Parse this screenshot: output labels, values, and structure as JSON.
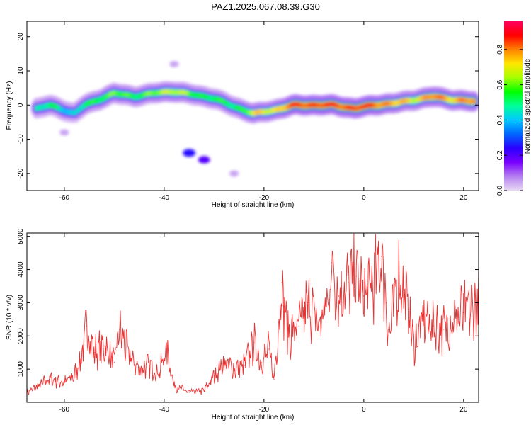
{
  "title": "PAZ1.2025.067.08.39.G30",
  "chart_data": [
    {
      "type": "heatmap",
      "xlabel": "Height of straight line (km)",
      "ylabel": "Frequency (Hz)",
      "colorbar_label": "Normalized spectral amplitude",
      "xlim": [
        -67.5,
        23
      ],
      "ylim": [
        -25,
        24.5
      ],
      "clim": [
        0,
        0.96
      ],
      "x_ticks": [
        -60,
        -40,
        -20,
        0,
        20
      ],
      "y_ticks": [
        20,
        10,
        0,
        -10,
        -20
      ],
      "colorbar_ticks": [
        0.0,
        0.2,
        0.4,
        0.6,
        0.8
      ],
      "colormap": [
        "#e8d8f4",
        "#b580f0",
        "#7a00ff",
        "#2a00ff",
        "#0066ff",
        "#00c8ff",
        "#00ff9a",
        "#00ff00",
        "#a6ff00",
        "#ffe600",
        "#ff8000",
        "#ff0000",
        "#ff0060"
      ],
      "ridge": {
        "x": [
          -65.5,
          -63,
          -60,
          -58,
          -56,
          -54,
          -50,
          -46,
          -42,
          -38,
          -34,
          -30,
          -26,
          -22,
          -18,
          -14,
          -10,
          -6,
          -2,
          2,
          6,
          10,
          14,
          18,
          22.5
        ],
        "freq": [
          -1,
          0,
          -1.5,
          -2.5,
          0,
          1,
          3.5,
          2.5,
          3.5,
          4,
          3,
          2,
          -0.5,
          -2.5,
          -1.5,
          0,
          0,
          0,
          -1,
          0,
          0.5,
          1.5,
          2.5,
          1.5,
          1
        ],
        "amplitude": [
          0.45,
          0.5,
          0.45,
          0.4,
          0.5,
          0.55,
          0.6,
          0.55,
          0.6,
          0.7,
          0.55,
          0.55,
          0.5,
          0.7,
          0.7,
          0.85,
          0.85,
          0.85,
          0.85,
          0.85,
          0.75,
          0.7,
          0.8,
          0.75,
          0.8
        ]
      },
      "secondary_features": [
        {
          "x": -35,
          "freq": -14,
          "amplitude": 0.25
        },
        {
          "x": -32,
          "freq": -16,
          "amplitude": 0.2
        },
        {
          "x": -60,
          "freq": -8,
          "amplitude": 0.05
        },
        {
          "x": -38,
          "freq": 12,
          "amplitude": 0.05
        },
        {
          "x": -26,
          "freq": -20,
          "amplitude": 0.05
        }
      ]
    },
    {
      "type": "line",
      "xlabel": "Height of straight line (km)",
      "ylabel": "SNR (10 * v/v)",
      "xlim": [
        -67.5,
        23
      ],
      "ylim": [
        0,
        5100
      ],
      "x_ticks": [
        -60,
        -40,
        -20,
        0,
        20
      ],
      "y_ticks": [
        1000,
        2000,
        3000,
        4000,
        5000
      ],
      "color": "#ee3030",
      "x": [
        -67.5,
        -65,
        -63,
        -60,
        -58,
        -56.5,
        -55.5,
        -54,
        -52,
        -50,
        -49,
        -47,
        -45,
        -43,
        -41,
        -39.5,
        -38,
        -35,
        -32,
        -30,
        -28,
        -26,
        -24,
        -22,
        -20.5,
        -19,
        -18,
        -17,
        -16.5,
        -16,
        -15,
        -13,
        -11,
        -9,
        -7,
        -6.5,
        -5,
        -3,
        -1.5,
        0,
        2,
        3.5,
        4.5,
        5,
        7,
        8,
        9,
        10,
        12,
        14,
        16,
        18,
        20,
        23
      ],
      "y": [
        300,
        500,
        700,
        600,
        800,
        1400,
        2300,
        1500,
        1700,
        1200,
        2200,
        1400,
        1000,
        1100,
        900,
        1600,
        500,
        300,
        350,
        800,
        1200,
        1000,
        1100,
        1800,
        1200,
        1600,
        700,
        2500,
        3600,
        2900,
        2000,
        2300,
        3000,
        2300,
        3100,
        4200,
        3200,
        3600,
        3800,
        3200,
        3600,
        4400,
        3000,
        2000,
        3800,
        3300,
        2800,
        1700,
        2500,
        2300,
        2200,
        2500,
        2700,
        2900
      ]
    }
  ]
}
